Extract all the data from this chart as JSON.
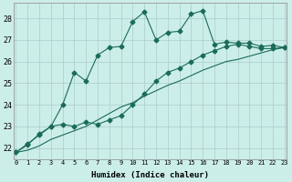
{
  "xlabel": "Humidex (Indice chaleur)",
  "background_color": "#cceee8",
  "grid_color": "#aacccc",
  "line_color": "#1a6b5a",
  "x_values": [
    0,
    1,
    2,
    3,
    4,
    5,
    6,
    7,
    8,
    9,
    10,
    11,
    12,
    13,
    14,
    15,
    16,
    17,
    18,
    19,
    20,
    21,
    22,
    23
  ],
  "line1_y": [
    21.8,
    22.2,
    22.6,
    23.0,
    24.0,
    25.5,
    25.1,
    26.3,
    26.65,
    26.7,
    27.85,
    28.3,
    27.0,
    27.35,
    27.4,
    28.2,
    28.35,
    26.8,
    26.9,
    26.85,
    26.85,
    26.7,
    26.75,
    26.65
  ],
  "line2_y": [
    21.8,
    22.15,
    22.65,
    23.0,
    23.1,
    23.0,
    23.2,
    23.1,
    23.3,
    23.5,
    24.0,
    24.5,
    25.1,
    25.5,
    25.7,
    26.0,
    26.3,
    26.5,
    26.7,
    26.8,
    26.7,
    26.6,
    26.6,
    26.65
  ],
  "line3_y": [
    21.8,
    21.9,
    22.1,
    22.4,
    22.6,
    22.8,
    23.0,
    23.3,
    23.6,
    23.9,
    24.1,
    24.4,
    24.65,
    24.9,
    25.1,
    25.35,
    25.6,
    25.8,
    26.0,
    26.1,
    26.25,
    26.4,
    26.55,
    26.65
  ],
  "yticks": [
    22,
    23,
    24,
    25,
    26,
    27,
    28
  ],
  "xtick_labels": [
    "0",
    "1",
    "2",
    "3",
    "4",
    "5",
    "6",
    "7",
    "8",
    "9",
    "10",
    "11",
    "12",
    "13",
    "14",
    "15",
    "16",
    "17",
    "18",
    "19",
    "20",
    "21",
    "22",
    "23"
  ],
  "ymin": 21.5,
  "ymax": 28.7,
  "xmin": -0.2,
  "xmax": 23.2
}
